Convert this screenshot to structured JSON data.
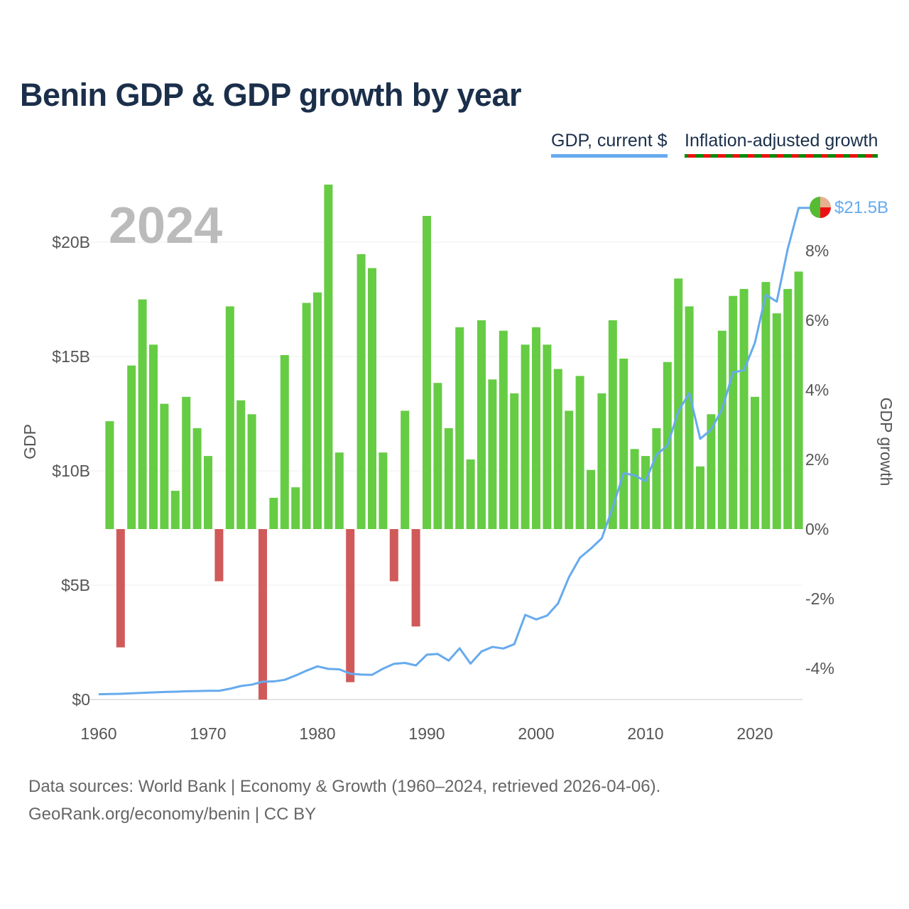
{
  "title": "Benin GDP & GDP growth by year",
  "legend": {
    "gdp": "GDP, current $",
    "growth": "Inflation-adjusted growth"
  },
  "footer": {
    "line1": "Data sources: World Bank | Economy & Growth (1960–2024, retrieved 2026-04-06).",
    "line2": "GeoRank.org/economy/benin | CC BY"
  },
  "colors": {
    "positive": "#66cc44",
    "negative": "#d05a5a",
    "gdp_line": "#66aaee",
    "title": "#1b2f4b"
  },
  "chart_data": {
    "type": "bar+line",
    "title": "Benin GDP & GDP growth by year",
    "current_year_label": "2024",
    "end_label": "$21.5B",
    "x_ticks": [
      1960,
      1970,
      1980,
      1990,
      2000,
      2010,
      2020
    ],
    "x_tick_labels": [
      "1960",
      "1970",
      "1980",
      "1990",
      "2000",
      "2010",
      "2020"
    ],
    "ylabel_left": "GDP",
    "ylabel_right": "GDP growth",
    "ylim_left": [
      0,
      23
    ],
    "left_ticks": [
      0,
      5,
      10,
      15,
      20
    ],
    "left_tick_labels": [
      "$0",
      "$5B",
      "$10B",
      "$15B",
      "$20B"
    ],
    "ylim_right": [
      -4.9,
      9.9
    ],
    "right_ticks": [
      -4,
      -2,
      0,
      2,
      4,
      6,
      8
    ],
    "right_tick_labels": [
      "-4%",
      "-2%",
      "0%",
      "2%",
      "4%",
      "6%",
      "8%"
    ],
    "series": [
      {
        "name": "GDP, current $ (billions)",
        "axis": "left",
        "type": "line",
        "x": [
          1960,
          1961,
          1962,
          1963,
          1964,
          1965,
          1966,
          1967,
          1968,
          1969,
          1970,
          1971,
          1972,
          1973,
          1974,
          1975,
          1976,
          1977,
          1978,
          1979,
          1980,
          1981,
          1982,
          1983,
          1984,
          1985,
          1986,
          1987,
          1988,
          1989,
          1990,
          1991,
          1992,
          1993,
          1994,
          1995,
          1996,
          1997,
          1998,
          1999,
          2000,
          2001,
          2002,
          2003,
          2004,
          2005,
          2006,
          2007,
          2008,
          2009,
          2010,
          2011,
          2012,
          2013,
          2014,
          2015,
          2016,
          2017,
          2018,
          2019,
          2020,
          2021,
          2022,
          2023,
          2024
        ],
        "values": [
          0.23,
          0.24,
          0.25,
          0.27,
          0.29,
          0.31,
          0.33,
          0.34,
          0.36,
          0.37,
          0.38,
          0.38,
          0.47,
          0.59,
          0.65,
          0.78,
          0.79,
          0.86,
          1.05,
          1.26,
          1.45,
          1.34,
          1.32,
          1.13,
          1.09,
          1.08,
          1.35,
          1.56,
          1.6,
          1.49,
          1.96,
          1.99,
          1.7,
          2.24,
          1.57,
          2.1,
          2.3,
          2.23,
          2.42,
          3.7,
          3.5,
          3.67,
          4.2,
          5.35,
          6.2,
          6.6,
          7.05,
          8.4,
          9.9,
          9.8,
          9.55,
          10.7,
          11.1,
          12.6,
          13.4,
          11.4,
          11.8,
          12.7,
          14.3,
          14.4,
          15.6,
          17.7,
          17.4,
          19.7,
          21.5
        ]
      },
      {
        "name": "Inflation-adjusted growth (%)",
        "axis": "right",
        "type": "bar",
        "x": [
          1961,
          1962,
          1963,
          1964,
          1965,
          1966,
          1967,
          1968,
          1969,
          1970,
          1971,
          1972,
          1973,
          1974,
          1975,
          1976,
          1977,
          1978,
          1979,
          1980,
          1981,
          1982,
          1983,
          1984,
          1985,
          1986,
          1987,
          1988,
          1989,
          1990,
          1991,
          1992,
          1993,
          1994,
          1995,
          1996,
          1997,
          1998,
          1999,
          2000,
          2001,
          2002,
          2003,
          2004,
          2005,
          2006,
          2007,
          2008,
          2009,
          2010,
          2011,
          2012,
          2013,
          2014,
          2015,
          2016,
          2017,
          2018,
          2019,
          2020,
          2021,
          2022,
          2023,
          2024
        ],
        "values": [
          3.1,
          -3.4,
          4.7,
          6.6,
          5.3,
          3.6,
          1.1,
          3.8,
          2.9,
          2.1,
          -1.5,
          6.4,
          3.7,
          3.3,
          -4.9,
          0.9,
          5.0,
          1.2,
          6.5,
          6.8,
          9.9,
          2.2,
          -4.4,
          7.9,
          7.5,
          2.2,
          -1.5,
          3.4,
          -2.8,
          9.0,
          4.2,
          2.9,
          5.8,
          2.0,
          6.0,
          4.3,
          5.7,
          3.9,
          5.3,
          5.8,
          5.3,
          4.6,
          3.4,
          4.4,
          1.7,
          3.9,
          6.0,
          4.9,
          2.3,
          2.1,
          2.9,
          4.8,
          7.2,
          6.4,
          1.8,
          3.3,
          5.7,
          6.7,
          6.9,
          3.8,
          7.1,
          6.2,
          6.9,
          7.4
        ]
      }
    ]
  }
}
